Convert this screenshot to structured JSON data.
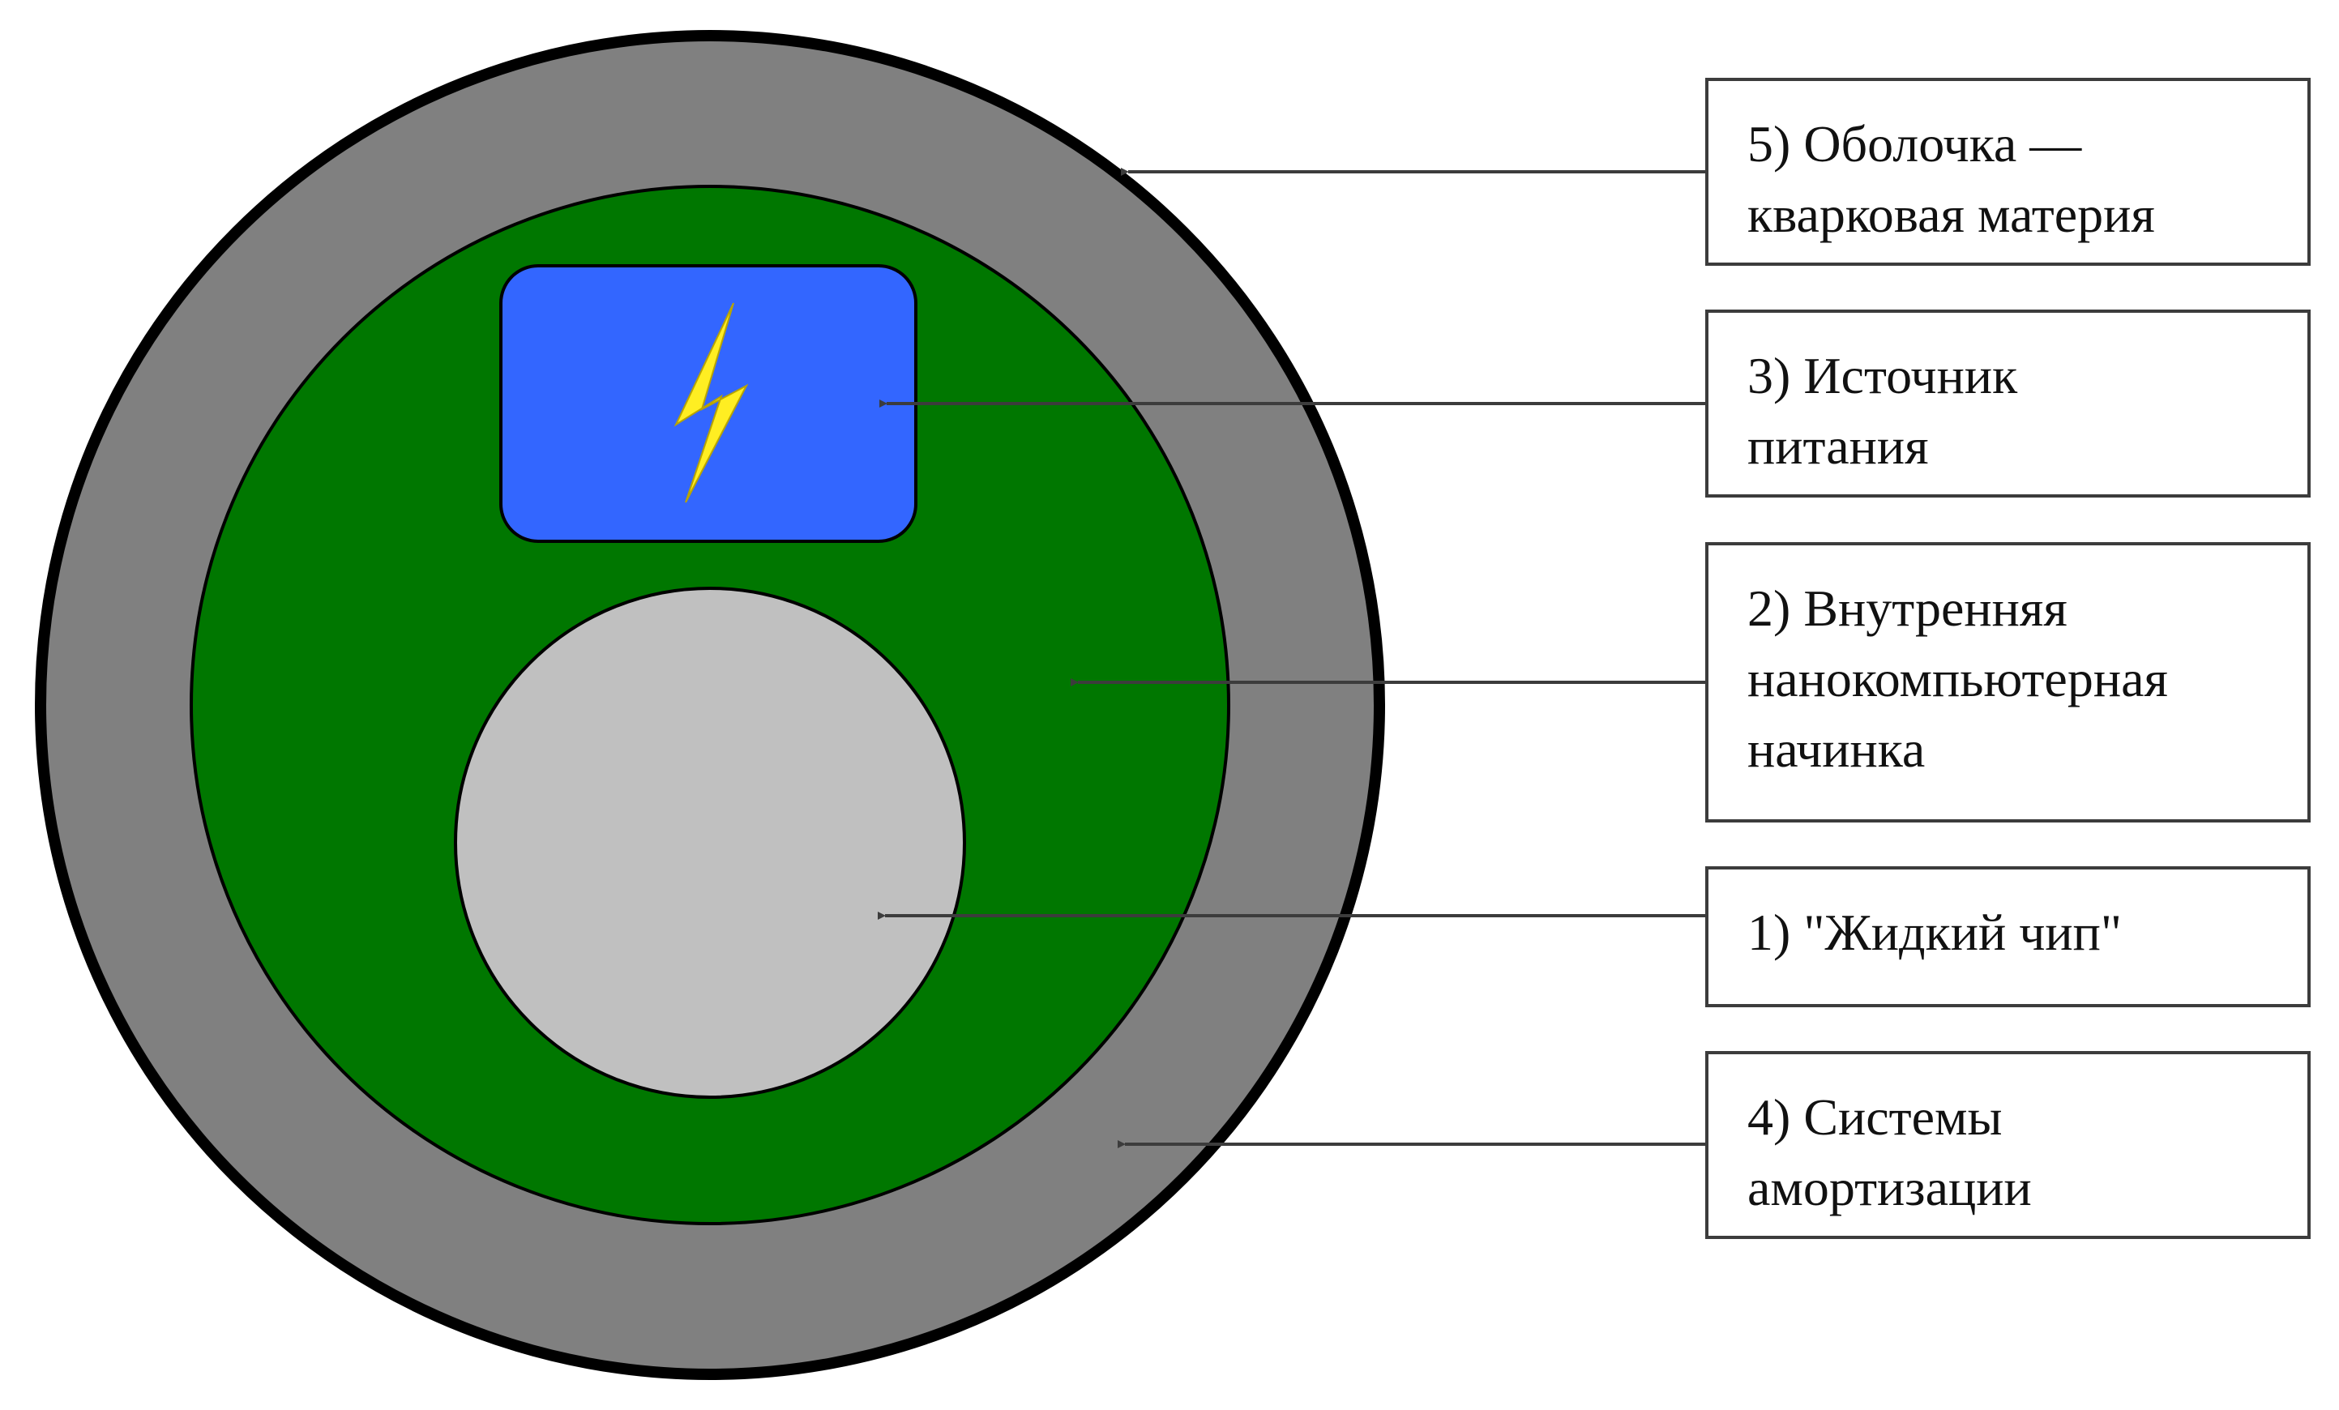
{
  "colors": {
    "shell_fill": "#808080",
    "shell_stroke": "#000000",
    "filling_fill": "#007700",
    "power_fill": "#3366ff",
    "chip_fill": "#c0c0c0",
    "bolt_fill": "#ffee22",
    "arrow": "#3c3c3c"
  },
  "icons": {
    "power": "lightning-bolt-icon"
  },
  "labels": {
    "shell": [
      "5) Оболочка —",
      "кварковая материя"
    ],
    "power_source": [
      "3) Источник",
      "питания"
    ],
    "filling": [
      "2) Внутренняя",
      "нанокомпьютерная",
      "начинка"
    ],
    "liquid_chip": [
      "1) \"Жидкий чип\""
    ],
    "damping": [
      "4) Системы",
      "амортизации"
    ]
  }
}
